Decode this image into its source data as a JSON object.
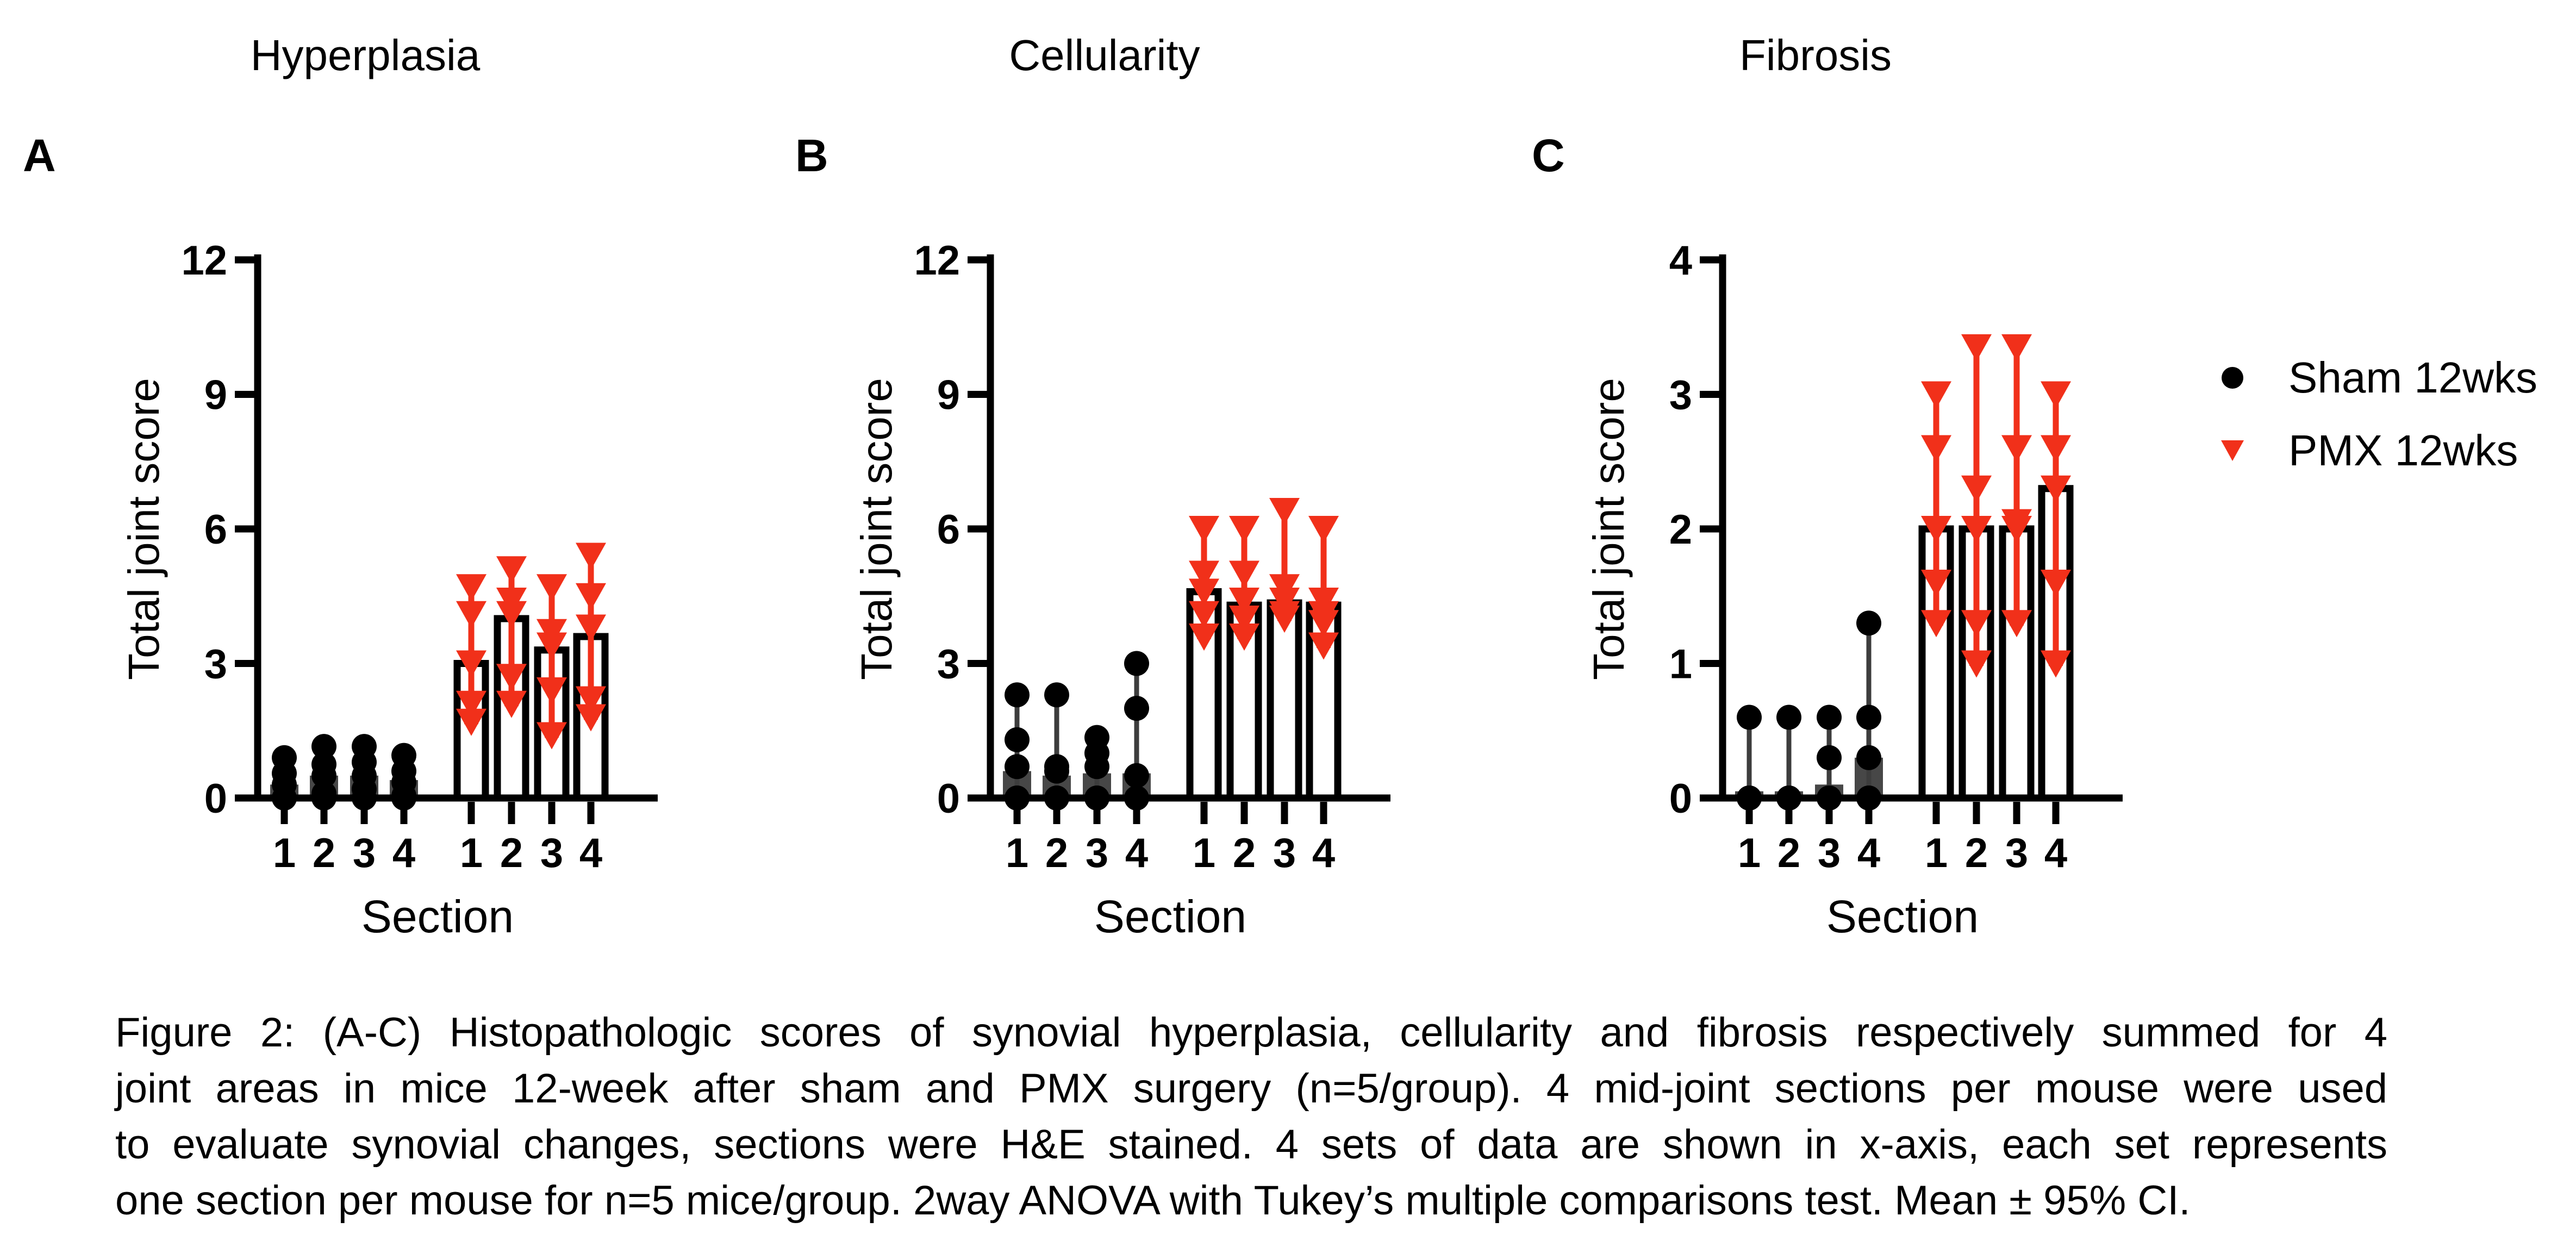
{
  "figure": {
    "panels": [
      {
        "label": "A",
        "title": "Hyperplasia"
      },
      {
        "label": "B",
        "title": "Cellularity"
      },
      {
        "label": "C",
        "title": "Fibrosis"
      }
    ],
    "legend": [
      {
        "label": "Sham 12wks",
        "marker": "circle-icon",
        "color": "#000000"
      },
      {
        "label": "PMX 12wks",
        "marker": "triangle-down-icon",
        "color": "#F1301A"
      }
    ],
    "caption_lines": [
      "Figure 2: (A-C) Histopathologic scores of synovial hyperplasia, cellularity and fibrosis respectively summed for 4",
      "joint areas in mice 12-week after sham and PMX surgery (n=5/group). 4 mid-joint sections per mouse were used",
      "to evaluate synovial changes, sections were H&E stained. 4 sets of data are shown in x-axis, each set represents",
      "one section per mouse for n=5 mice/group. 2way ANOVA with Tukey’s multiple comparisons test. Mean ± 95% CI."
    ]
  },
  "chart_data": [
    {
      "type": "bar",
      "panel_label": "A",
      "title": "Hyperplasia",
      "xlabel": "Section",
      "ylabel": "Total joint score",
      "ylim": [
        0,
        12
      ],
      "yticks": [
        0,
        3,
        6,
        9,
        12
      ],
      "x_tick_labels": [
        "1",
        "2",
        "3",
        "4",
        "1",
        "2",
        "3",
        "4"
      ],
      "grid": false,
      "legend_position": "right-of-panel-C",
      "series": [
        {
          "name": "Sham 12wks",
          "marker": "circle",
          "color": "#000000",
          "bar_fill": "#474747",
          "bar_outline": "none",
          "sections": [
            {
              "x": "1",
              "mean": 0.3,
              "ci": [
                0,
                0.9
              ],
              "points": [
                0,
                0,
                0.3,
                0.55,
                0.9
              ]
            },
            {
              "x": "2",
              "mean": 0.5,
              "ci": [
                0,
                1.15
              ],
              "points": [
                0,
                0.1,
                0.5,
                0.75,
                1.15
              ]
            },
            {
              "x": "3",
              "mean": 0.5,
              "ci": [
                0,
                1.15
              ],
              "points": [
                0,
                0.2,
                0.5,
                0.8,
                1.15
              ]
            },
            {
              "x": "4",
              "mean": 0.4,
              "ci": [
                0,
                0.95
              ],
              "points": [
                0,
                0.05,
                0.35,
                0.6,
                0.95
              ]
            }
          ]
        },
        {
          "name": "PMX 12wks",
          "marker": "triangle-down",
          "color": "#F1301A",
          "bar_fill": "#FFFFFF",
          "bar_outline": "#000000",
          "sections": [
            {
              "x": "1",
              "mean": 3.0,
              "ci": [
                1.7,
                4.85
              ],
              "points": [
                4.7,
                4.1,
                3.0,
                2.1,
                1.7
              ]
            },
            {
              "x": "2",
              "mean": 4.0,
              "ci": [
                2.1,
                5.15
              ],
              "points": [
                5.1,
                4.4,
                4.1,
                2.7,
                2.1
              ]
            },
            {
              "x": "3",
              "mean": 3.3,
              "ci": [
                1.4,
                4.8
              ],
              "points": [
                4.7,
                3.7,
                3.4,
                2.4,
                1.4
              ]
            },
            {
              "x": "4",
              "mean": 3.6,
              "ci": [
                1.8,
                5.45
              ],
              "points": [
                5.4,
                4.5,
                3.8,
                2.2,
                1.8
              ]
            }
          ]
        }
      ]
    },
    {
      "type": "bar",
      "panel_label": "B",
      "title": "Cellularity",
      "xlabel": "Section",
      "ylabel": "Total joint score",
      "ylim": [
        0,
        12
      ],
      "yticks": [
        0,
        3,
        6,
        9,
        12
      ],
      "x_tick_labels": [
        "1",
        "2",
        "3",
        "4",
        "1",
        "2",
        "3",
        "4"
      ],
      "grid": false,
      "series": [
        {
          "name": "Sham 12wks",
          "marker": "circle",
          "color": "#000000",
          "bar_fill": "#474747",
          "bar_outline": "none",
          "sections": [
            {
              "x": "1",
              "mean": 0.6,
              "ci": [
                0,
                2.3
              ],
              "points": [
                0,
                0,
                0.7,
                1.3,
                2.3
              ]
            },
            {
              "x": "2",
              "mean": 0.5,
              "ci": [
                0,
                2.3
              ],
              "points": [
                0,
                0,
                0.6,
                0.7,
                2.3
              ]
            },
            {
              "x": "3",
              "mean": 0.55,
              "ci": [
                0,
                1.35
              ],
              "points": [
                0,
                0,
                0.7,
                1.0,
                1.35
              ]
            },
            {
              "x": "4",
              "mean": 0.55,
              "ci": [
                0,
                3.0
              ],
              "points": [
                0,
                0,
                0.5,
                2.0,
                3.0
              ]
            }
          ]
        },
        {
          "name": "PMX 12wks",
          "marker": "triangle-down",
          "color": "#F1301A",
          "bar_fill": "#FFFFFF",
          "bar_outline": "#000000",
          "sections": [
            {
              "x": "1",
              "mean": 4.6,
              "ci": [
                3.6,
                6.1
              ],
              "points": [
                6.0,
                5.0,
                4.6,
                4.1,
                3.6
              ]
            },
            {
              "x": "2",
              "mean": 4.3,
              "ci": [
                3.6,
                6.05
              ],
              "points": [
                6.0,
                5.0,
                4.4,
                4.0,
                3.6
              ]
            },
            {
              "x": "3",
              "mean": 4.35,
              "ci": [
                4.0,
                6.45
              ],
              "points": [
                6.4,
                4.7,
                4.4,
                4.1,
                4.0
              ]
            },
            {
              "x": "4",
              "mean": 4.3,
              "ci": [
                3.4,
                6.05
              ],
              "points": [
                6.0,
                4.4,
                4.1,
                3.9,
                3.4
              ]
            }
          ]
        }
      ]
    },
    {
      "type": "bar",
      "panel_label": "C",
      "title": "Fibrosis",
      "xlabel": "Section",
      "ylabel": "Total joint score",
      "ylim": [
        0,
        4
      ],
      "yticks": [
        0,
        1,
        2,
        3,
        4
      ],
      "x_tick_labels": [
        "1",
        "2",
        "3",
        "4",
        "1",
        "2",
        "3",
        "4"
      ],
      "grid": false,
      "series": [
        {
          "name": "Sham 12wks",
          "marker": "circle",
          "color": "#000000",
          "bar_fill": "#474747",
          "bar_outline": "none",
          "sections": [
            {
              "x": "1",
              "mean": 0.05,
              "ci": [
                0,
                0.6
              ],
              "points": [
                0,
                0,
                0,
                0,
                0.6
              ]
            },
            {
              "x": "2",
              "mean": 0.05,
              "ci": [
                0,
                0.6
              ],
              "points": [
                0,
                0,
                0,
                0,
                0.6
              ]
            },
            {
              "x": "3",
              "mean": 0.1,
              "ci": [
                0,
                0.6
              ],
              "points": [
                0,
                0,
                0,
                0.3,
                0.6
              ]
            },
            {
              "x": "4",
              "mean": 0.3,
              "ci": [
                0,
                1.3
              ],
              "points": [
                0,
                0,
                0.3,
                0.6,
                1.3
              ]
            }
          ]
        },
        {
          "name": "PMX 12wks",
          "marker": "triangle-down",
          "color": "#F1301A",
          "bar_fill": "#FFFFFF",
          "bar_outline": "#000000",
          "sections": [
            {
              "x": "1",
              "mean": 2.0,
              "ci": [
                1.3,
                3.05
              ],
              "points": [
                3.0,
                2.6,
                2.0,
                1.6,
                1.3
              ]
            },
            {
              "x": "2",
              "mean": 2.0,
              "ci": [
                1.0,
                3.4
              ],
              "points": [
                3.35,
                2.3,
                2.0,
                1.3,
                1.0
              ]
            },
            {
              "x": "3",
              "mean": 2.0,
              "ci": [
                1.3,
                3.4
              ],
              "points": [
                3.35,
                2.6,
                2.05,
                2.0,
                1.3
              ]
            },
            {
              "x": "4",
              "mean": 2.3,
              "ci": [
                1.0,
                3.05
              ],
              "points": [
                3.0,
                2.6,
                2.3,
                1.6,
                1.0
              ]
            }
          ]
        }
      ]
    }
  ]
}
